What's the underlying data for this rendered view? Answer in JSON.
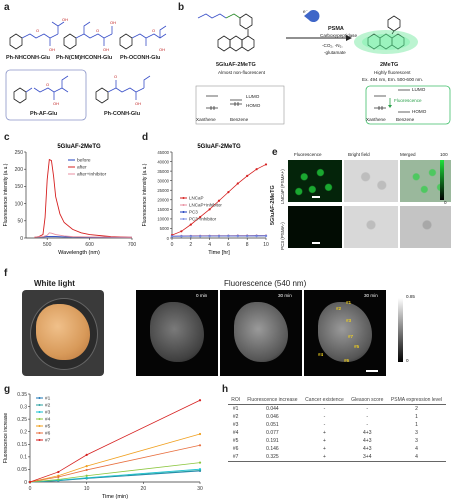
{
  "panels": {
    "a": "a",
    "b": "b",
    "c": "c",
    "d": "d",
    "e": "e",
    "f": "f",
    "g": "g",
    "h": "h"
  },
  "a": {
    "compounds": [
      "Ph-NHCONH-Glu",
      "Ph-N(CM)HCONH-Glu",
      "Ph-OCONH-Glu",
      "Ph-AF-Glu",
      "Ph-CONH-Glu"
    ],
    "acid": "OH",
    "carbonyl": "O"
  },
  "b": {
    "enzyme": "PSMA",
    "enzyme2": "Carboxypeptidase",
    "cond1": "-CO₂, -N₂,",
    "cond2": "-glutamate",
    "left_name": "5GluAF-2MeTG",
    "left_sub": "Almost non-fluorescent",
    "right_name": "2MeTG",
    "right_sub1": "Highly fluorescent",
    "right_sub2": "Ex. 494 nm, Em. 500-600 nm.",
    "lumo": "LUMO",
    "homo": "HOMO",
    "xanthene": "Xanthene",
    "benzene": "Benzene",
    "fluorescence": "Fluorescence",
    "electron": "e⁻"
  },
  "c": {
    "title": "5GluAF-2MeTG",
    "xlabel": "Wavelength (nm)",
    "ylabel": "Fluorescence intensity (a.u.)",
    "legend": [
      "before",
      "after",
      "after+inhibitor"
    ]
  },
  "d": {
    "title": "5GluAF-2MeTG",
    "xlabel": "Time [hr]",
    "ylabel": "Fluorescence intensity (a.u.)",
    "legend": [
      "LNCaP",
      "LNCaP+inhibitor",
      "PC3",
      "PC3+inhibitor"
    ]
  },
  "e": {
    "col_headers": [
      "Fluorescence",
      "Bright field",
      "Merged"
    ],
    "side_label": "5GluAF-2MeTG",
    "row_labels": [
      "LNCaP (PSMA+)",
      "PC3 (PSMA-)"
    ],
    "cbar_max": "100",
    "cbar_min": "0"
  },
  "f": {
    "white_light": "White light",
    "fluorescence": "Fluorescence (540 nm)",
    "times": [
      "0 min",
      "30 min",
      "30 min"
    ],
    "cbar_max": "0.85",
    "cbar_min": "0",
    "rois": [
      "#1",
      "#2",
      "#3",
      "#4",
      "#5",
      "#6",
      "#7"
    ]
  },
  "g": {
    "ylabel": "Fluorescence increase",
    "xlabel": "Time (min)"
  },
  "h": {
    "headers": [
      "ROI",
      "Fluorescence increase",
      "Cancer existence",
      "Gleason score",
      "PSMA expression level"
    ],
    "rows": [
      [
        "#1",
        "0.044",
        "-",
        "-",
        "2"
      ],
      [
        "#2",
        "0.046",
        "-",
        "-",
        "1"
      ],
      [
        "#3",
        "0.051",
        "-",
        "-",
        "1"
      ],
      [
        "#4",
        "0.077",
        "+",
        "4+3",
        "3"
      ],
      [
        "#5",
        "0.191",
        "+",
        "4+3",
        "3"
      ],
      [
        "#6",
        "0.146",
        "+",
        "4+3",
        "4"
      ],
      [
        "#7",
        "0.325",
        "+",
        "3+4",
        "4"
      ]
    ]
  },
  "chart_data": [
    {
      "type": "line",
      "title": "5GluAF-2MeTG",
      "xlabel": "Wavelength (nm)",
      "ylabel": "Fluorescence intensity (a.u.)",
      "xlim": [
        450,
        700
      ],
      "ylim": [
        0,
        250
      ],
      "xticks": [
        500,
        600,
        700
      ],
      "yticks": [
        0,
        50,
        100,
        150,
        200,
        250
      ],
      "series": [
        {
          "name": "before",
          "color": "#1f3fbf",
          "x": [
            470,
            490,
            500,
            510,
            520,
            540,
            560,
            600,
            650,
            700
          ],
          "y": [
            3,
            3,
            4,
            4,
            4,
            3,
            3,
            2,
            2,
            2
          ]
        },
        {
          "name": "after",
          "color": "#d62020",
          "x": [
            470,
            480,
            490,
            495,
            500,
            505,
            510,
            515,
            520,
            530,
            540,
            560,
            580,
            600,
            650,
            700
          ],
          "y": [
            2,
            4,
            10,
            60,
            170,
            228,
            225,
            180,
            120,
            70,
            45,
            25,
            15,
            10,
            4,
            2
          ]
        },
        {
          "name": "after+inhibitor",
          "color": "#e88fa0",
          "x": [
            470,
            490,
            500,
            505,
            510,
            520,
            540,
            560,
            600,
            700
          ],
          "y": [
            3,
            4,
            8,
            15,
            14,
            10,
            6,
            4,
            3,
            2
          ]
        }
      ]
    },
    {
      "type": "line",
      "title": "5GluAF-2MeTG",
      "xlabel": "Time [hr]",
      "ylabel": "Fluorescence intensity (a.u.)",
      "xlim": [
        0,
        10
      ],
      "ylim": [
        0,
        45000
      ],
      "xticks": [
        0,
        2,
        4,
        6,
        8,
        10
      ],
      "yticks": [
        0,
        5000,
        10000,
        15000,
        20000,
        25000,
        30000,
        35000,
        40000,
        45000
      ],
      "series": [
        {
          "name": "LNCaP",
          "color": "#d62020",
          "x": [
            0,
            1,
            2,
            3,
            4,
            5,
            6,
            7,
            8,
            9,
            10
          ],
          "y": [
            1500,
            3500,
            7000,
            11000,
            15000,
            19500,
            24000,
            28500,
            32500,
            36000,
            38500
          ]
        },
        {
          "name": "LNCaP+inhibitor",
          "color": "#e88fa0",
          "x": [
            0,
            1,
            2,
            3,
            4,
            5,
            6,
            7,
            8,
            9,
            10
          ],
          "y": [
            1000,
            1100,
            1150,
            1200,
            1200,
            1250,
            1250,
            1300,
            1300,
            1300,
            1300
          ]
        },
        {
          "name": "PC3",
          "color": "#1f3fbf",
          "x": [
            0,
            1,
            2,
            3,
            4,
            5,
            6,
            7,
            8,
            9,
            10
          ],
          "y": [
            900,
            950,
            1000,
            1000,
            1050,
            1050,
            1100,
            1100,
            1100,
            1150,
            1150
          ]
        },
        {
          "name": "PC3+inhibitor",
          "color": "#7d8fe0",
          "x": [
            0,
            1,
            2,
            3,
            4,
            5,
            6,
            7,
            8,
            9,
            10
          ],
          "y": [
            800,
            850,
            850,
            900,
            900,
            900,
            950,
            950,
            950,
            950,
            1000
          ]
        }
      ]
    },
    {
      "type": "line",
      "title": "",
      "xlabel": "Time (min)",
      "ylabel": "Fluorescence increase",
      "xlim": [
        0,
        30
      ],
      "ylim": [
        0,
        0.35
      ],
      "xticks": [
        0,
        10,
        20,
        30
      ],
      "yticks": [
        0,
        0.05,
        0.1,
        0.15,
        0.2,
        0.25,
        0.3,
        0.35
      ],
      "series": [
        {
          "name": "#1",
          "color": "#1f77b4",
          "x": [
            0,
            5,
            10,
            30
          ],
          "y": [
            0,
            0.005,
            0.014,
            0.044
          ]
        },
        {
          "name": "#2",
          "color": "#2ca0a0",
          "x": [
            0,
            5,
            10,
            30
          ],
          "y": [
            0,
            0.006,
            0.015,
            0.046
          ]
        },
        {
          "name": "#3",
          "color": "#17c0d0",
          "x": [
            0,
            5,
            10,
            30
          ],
          "y": [
            0,
            0.007,
            0.017,
            0.051
          ]
        },
        {
          "name": "#4",
          "color": "#8cc63f",
          "x": [
            0,
            5,
            10,
            30
          ],
          "y": [
            0,
            0.01,
            0.025,
            0.077
          ]
        },
        {
          "name": "#5",
          "color": "#f0a020",
          "x": [
            0,
            5,
            10,
            30
          ],
          "y": [
            0,
            0.025,
            0.063,
            0.191
          ]
        },
        {
          "name": "#6",
          "color": "#e87040",
          "x": [
            0,
            5,
            10,
            30
          ],
          "y": [
            0,
            0.02,
            0.048,
            0.146
          ]
        },
        {
          "name": "#7",
          "color": "#d62020",
          "x": [
            0,
            5,
            10,
            30
          ],
          "y": [
            0,
            0.04,
            0.108,
            0.325
          ]
        }
      ]
    }
  ]
}
